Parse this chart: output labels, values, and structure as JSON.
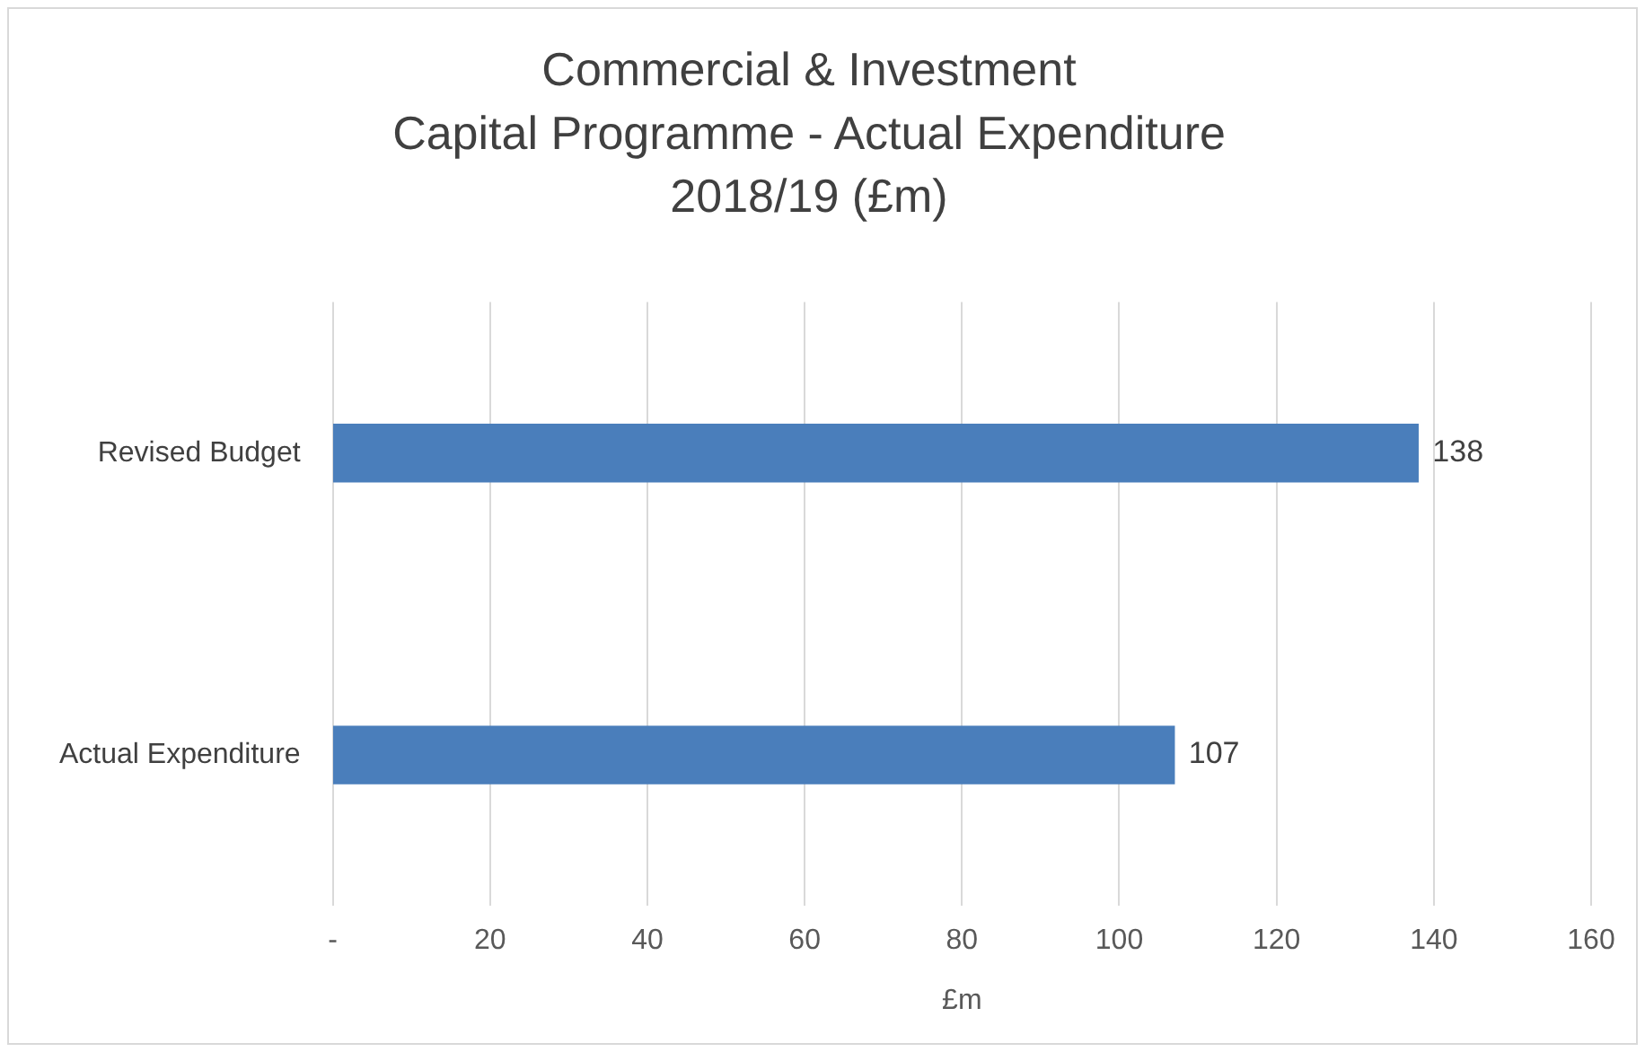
{
  "chart_data": {
    "type": "bar",
    "orientation": "horizontal",
    "title": "Commercial & Investment\nCapital Programme - Actual Expenditure\n2018/19 (£m)",
    "xlabel": "£m",
    "categories": [
      "Revised Budget",
      "Actual Expenditure"
    ],
    "values": [
      138,
      107
    ],
    "color": "#4a7ebb",
    "xlim": [
      0,
      160
    ],
    "xticks": [
      {
        "value": 0,
        "label": "-"
      },
      20,
      40,
      60,
      80,
      100,
      120,
      140,
      160
    ],
    "grid": "x",
    "data_labels": true
  }
}
